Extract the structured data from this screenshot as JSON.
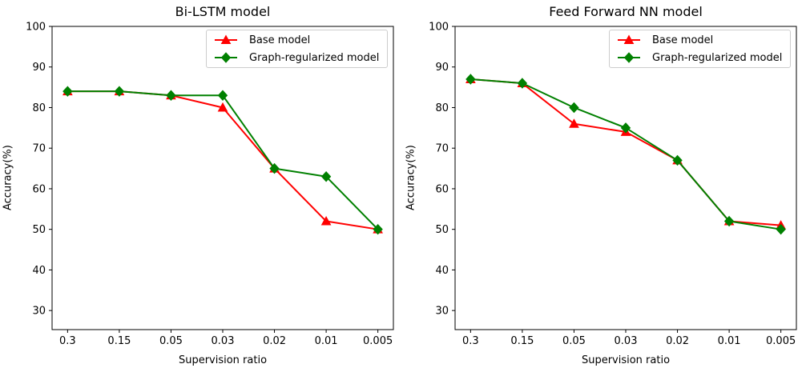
{
  "figure": {
    "background": "#ffffff"
  },
  "chart_data": [
    {
      "type": "line",
      "title": "Bi-LSTM model",
      "xlabel": "Supervision ratio",
      "ylabel": "Accuracy(%)",
      "categories": [
        "0.3",
        "0.15",
        "0.05",
        "0.03",
        "0.02",
        "0.01",
        "0.005"
      ],
      "yticks": [
        30,
        40,
        50,
        60,
        70,
        80,
        90,
        100
      ],
      "ylim": [
        25.3,
        100
      ],
      "grid": false,
      "legend_position": "upper right",
      "series": [
        {
          "name": "Base model",
          "color": "#ff0000",
          "marker": "triangle",
          "values": [
            84,
            84,
            83,
            80,
            65,
            52,
            50
          ]
        },
        {
          "name": "Graph-regularized model",
          "color": "#008000",
          "marker": "diamond",
          "values": [
            84,
            84,
            83,
            83,
            65,
            63,
            50
          ]
        }
      ]
    },
    {
      "type": "line",
      "title": "Feed Forward NN model",
      "xlabel": "Supervision ratio",
      "ylabel": "Accuracy(%)",
      "categories": [
        "0.3",
        "0.15",
        "0.05",
        "0.03",
        "0.02",
        "0.01",
        "0.005"
      ],
      "yticks": [
        30,
        40,
        50,
        60,
        70,
        80,
        90,
        100
      ],
      "ylim": [
        25.3,
        100
      ],
      "grid": false,
      "legend_position": "upper right",
      "series": [
        {
          "name": "Base model",
          "color": "#ff0000",
          "marker": "triangle",
          "values": [
            87,
            86,
            76,
            74,
            67,
            52,
            51
          ]
        },
        {
          "name": "Graph-regularized model",
          "color": "#008000",
          "marker": "diamond",
          "values": [
            87,
            86,
            80,
            75,
            67,
            52,
            50
          ]
        }
      ]
    }
  ]
}
